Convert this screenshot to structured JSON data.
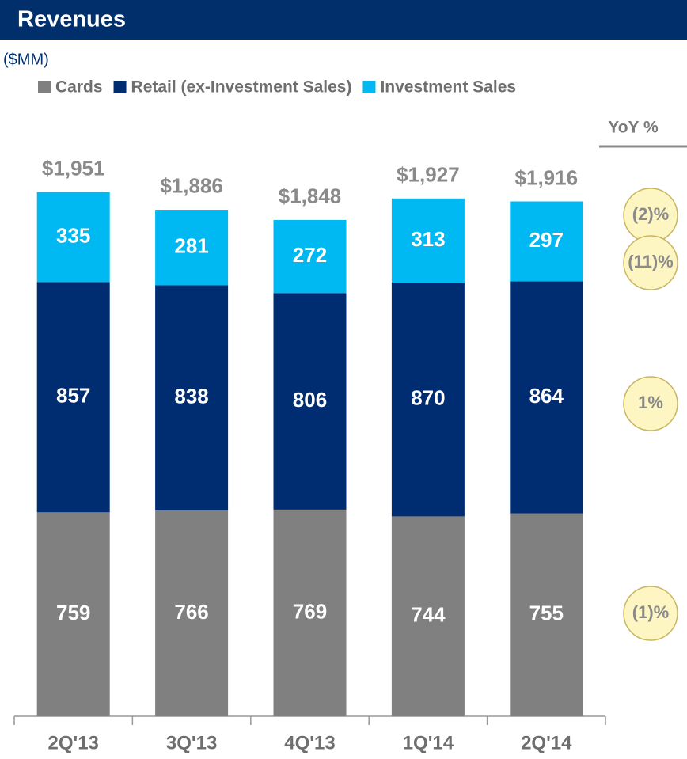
{
  "chart_data": {
    "type": "stacked_bar",
    "title": "Revenues",
    "subtitle": "($MM)",
    "categories": [
      "2Q'13",
      "3Q'13",
      "4Q'13",
      "1Q'14",
      "2Q'14"
    ],
    "series": [
      {
        "name": "Cards",
        "color": "#808080",
        "values": [
          759,
          766,
          769,
          744,
          755
        ]
      },
      {
        "name": "Retail (ex-Investment Sales)",
        "color": "#002d72",
        "values": [
          857,
          838,
          806,
          870,
          864
        ]
      },
      {
        "name": "Investment Sales",
        "color": "#00b9f2",
        "values": [
          335,
          281,
          272,
          313,
          297
        ]
      }
    ],
    "totals": {
      "values": [
        1951,
        1886,
        1848,
        1927,
        1916
      ],
      "value_labels": [
        "$1,951",
        "$1,886",
        "$1,848",
        "$1,927",
        "$1,916"
      ]
    },
    "yoy": {
      "title": "YoY %",
      "labels": [
        "(2)%",
        "(11)%",
        "1%",
        "(1)%"
      ]
    },
    "ylim": [
      0,
      2000
    ]
  }
}
